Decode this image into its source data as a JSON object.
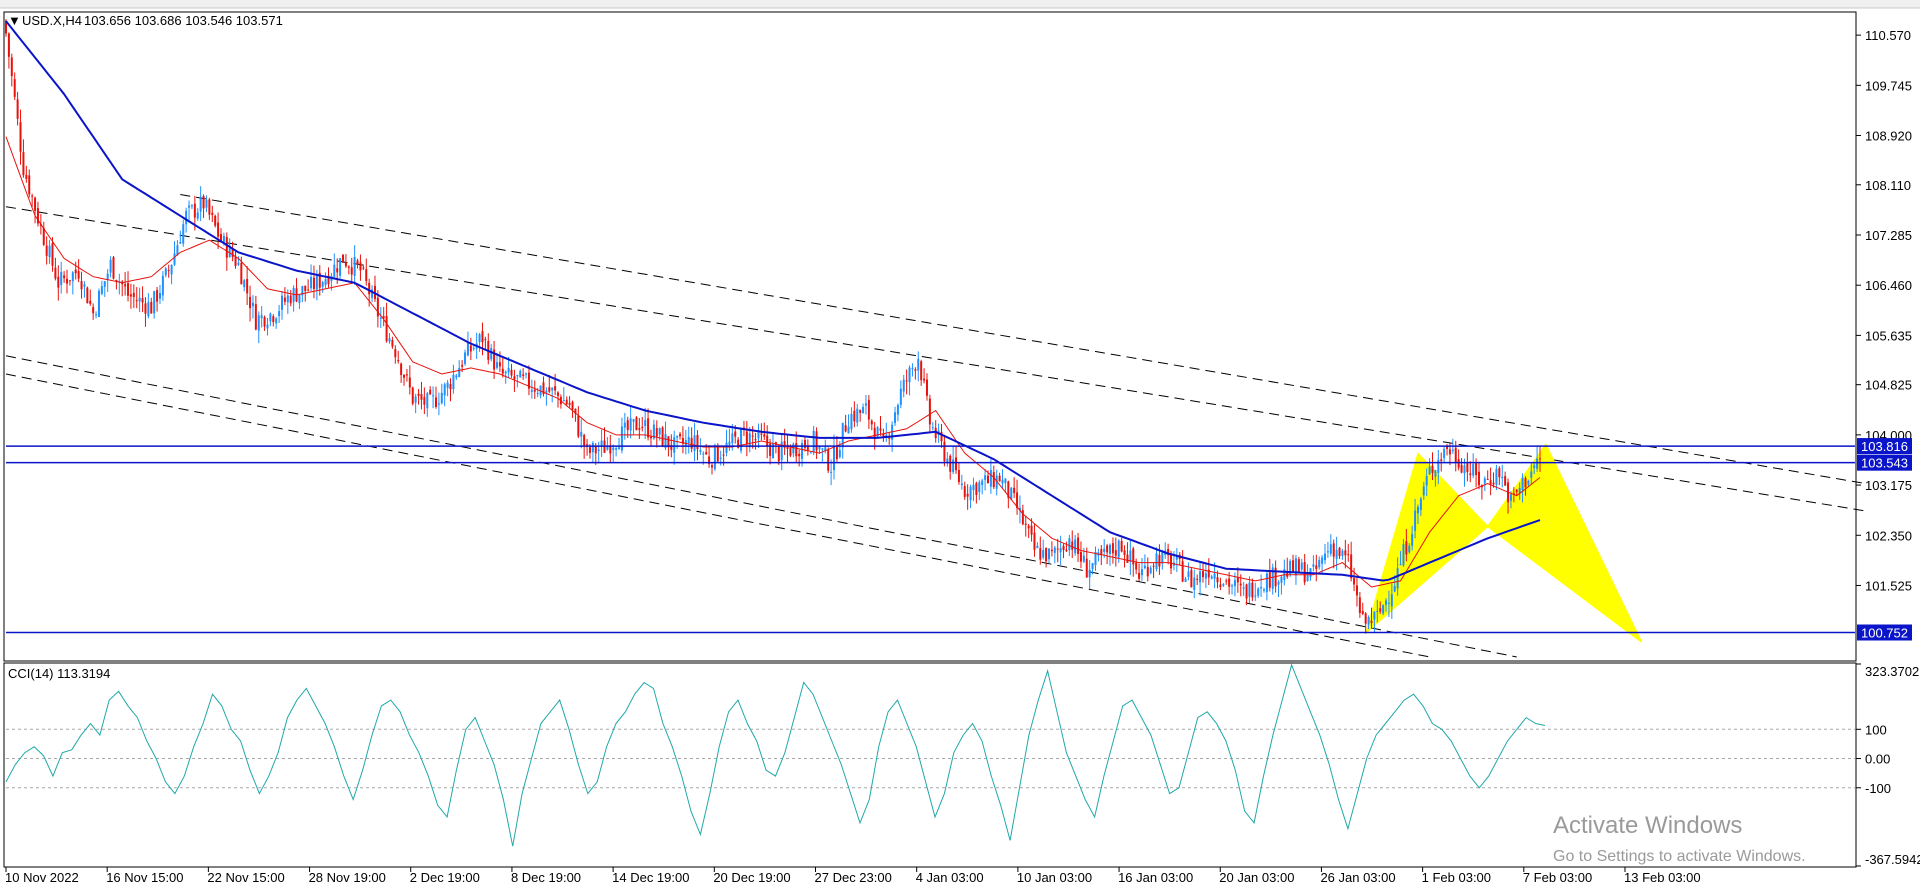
{
  "header": {
    "menu_glyph": "▼",
    "symbol_label": "USD.X,H4",
    "ohlc_text": "103.656 103.686 103.546 103.571"
  },
  "indicator": {
    "label": "CCI(14) 113.3194"
  },
  "watermark": {
    "title": "Activate Windows",
    "subtitle": "Go to Settings to activate Windows."
  },
  "colors": {
    "bull_candle": "#1e90ff",
    "bear_candle": "#e8120c",
    "ma_fast": "#e8120c",
    "ma_slow": "#0a14c8",
    "level_lines": "#0a14c8",
    "channel": "#000000",
    "pattern": "#ffff00",
    "cci": "#20a8a8",
    "grid_dots": "#a8a8a8"
  },
  "chart_data": [
    {
      "type": "candlestick",
      "symbol": "USD.X",
      "timeframe": "H4",
      "ylim": [
        100.3,
        110.95
      ],
      "price_ticks": [
        "110.570",
        "109.745",
        "108.920",
        "108.110",
        "107.285",
        "106.460",
        "105.635",
        "104.825",
        "104.000",
        "103.175",
        "102.350",
        "101.525"
      ],
      "x_ticks": [
        "10 Nov 2022",
        "16 Nov 15:00",
        "22 Nov 15:00",
        "28 Nov 19:00",
        "2 Dec 19:00",
        "8 Dec 19:00",
        "14 Dec 19:00",
        "20 Dec 19:00",
        "27 Dec 23:00",
        "4 Jan 03:00",
        "10 Jan 03:00",
        "16 Jan 03:00",
        "20 Jan 03:00",
        "26 Jan 03:00",
        "1 Feb 03:00",
        "7 Feb 03:00",
        "13 Feb 03:00"
      ],
      "level_lines": [
        {
          "label": "103.816",
          "value": 103.816
        },
        {
          "label": "103.543",
          "value": 103.543
        },
        {
          "label": "100.752",
          "value": 100.752
        }
      ],
      "last_ohlc": {
        "open": 103.656,
        "high": 103.686,
        "low": 103.546,
        "close": 103.571
      },
      "close_path": [
        [
          0,
          110.6
        ],
        [
          6,
          108.4
        ],
        [
          12,
          107.4
        ],
        [
          18,
          106.5
        ],
        [
          25,
          106.7
        ],
        [
          30,
          106.0
        ],
        [
          36,
          106.8
        ],
        [
          42,
          106.3
        ],
        [
          50,
          106.1
        ],
        [
          56,
          106.7
        ],
        [
          62,
          107.6
        ],
        [
          68,
          107.8
        ],
        [
          74,
          107.2
        ],
        [
          80,
          106.8
        ],
        [
          86,
          105.9
        ],
        [
          92,
          106.0
        ],
        [
          98,
          106.3
        ],
        [
          104,
          106.4
        ],
        [
          110,
          106.6
        ],
        [
          116,
          106.9
        ],
        [
          122,
          106.7
        ],
        [
          128,
          106.0
        ],
        [
          134,
          105.4
        ],
        [
          140,
          104.6
        ],
        [
          146,
          104.5
        ],
        [
          152,
          104.8
        ],
        [
          158,
          105.3
        ],
        [
          164,
          105.6
        ],
        [
          170,
          105.0
        ],
        [
          176,
          104.9
        ],
        [
          182,
          104.8
        ],
        [
          188,
          104.7
        ],
        [
          194,
          104.5
        ],
        [
          200,
          103.7
        ],
        [
          206,
          103.8
        ],
        [
          212,
          104.0
        ],
        [
          218,
          104.2
        ],
        [
          224,
          104.0
        ],
        [
          230,
          103.8
        ],
        [
          236,
          103.9
        ],
        [
          242,
          103.6
        ],
        [
          248,
          103.8
        ],
        [
          254,
          104.0
        ],
        [
          260,
          103.9
        ],
        [
          266,
          103.7
        ],
        [
          272,
          103.8
        ],
        [
          278,
          103.9
        ],
        [
          284,
          103.5
        ],
        [
          290,
          104.3
        ],
        [
          296,
          104.4
        ],
        [
          302,
          103.8
        ],
        [
          308,
          104.7
        ],
        [
          314,
          105.3
        ],
        [
          318,
          104.2
        ],
        [
          324,
          103.6
        ],
        [
          330,
          103.1
        ],
        [
          336,
          103.2
        ],
        [
          342,
          103.3
        ],
        [
          348,
          102.8
        ],
        [
          354,
          102.1
        ],
        [
          360,
          102.0
        ],
        [
          366,
          102.3
        ],
        [
          372,
          101.8
        ],
        [
          378,
          102.0
        ],
        [
          384,
          102.2
        ],
        [
          390,
          101.7
        ],
        [
          396,
          102.0
        ],
        [
          402,
          101.9
        ],
        [
          408,
          101.6
        ],
        [
          414,
          101.8
        ],
        [
          420,
          101.6
        ],
        [
          426,
          101.4
        ],
        [
          432,
          101.6
        ],
        [
          438,
          101.7
        ],
        [
          444,
          101.8
        ],
        [
          450,
          101.7
        ],
        [
          456,
          102.2
        ],
        [
          462,
          101.9
        ],
        [
          467,
          100.9
        ],
        [
          472,
          101.0
        ],
        [
          478,
          101.6
        ],
        [
          484,
          102.5
        ],
        [
          490,
          103.4
        ],
        [
          496,
          103.8
        ],
        [
          502,
          103.5
        ],
        [
          508,
          103.2
        ],
        [
          514,
          103.4
        ],
        [
          518,
          102.9
        ],
        [
          522,
          103.2
        ],
        [
          528,
          103.6
        ]
      ],
      "ma_fast_path": [
        [
          0,
          108.9
        ],
        [
          10,
          107.6
        ],
        [
          20,
          106.9
        ],
        [
          30,
          106.6
        ],
        [
          40,
          106.5
        ],
        [
          50,
          106.6
        ],
        [
          60,
          107.0
        ],
        [
          70,
          107.2
        ],
        [
          80,
          106.9
        ],
        [
          90,
          106.4
        ],
        [
          100,
          106.3
        ],
        [
          110,
          106.4
        ],
        [
          120,
          106.5
        ],
        [
          130,
          105.9
        ],
        [
          140,
          105.2
        ],
        [
          150,
          105.0
        ],
        [
          160,
          105.1
        ],
        [
          170,
          105.0
        ],
        [
          180,
          104.8
        ],
        [
          190,
          104.6
        ],
        [
          200,
          104.2
        ],
        [
          210,
          104.0
        ],
        [
          220,
          104.0
        ],
        [
          230,
          103.9
        ],
        [
          240,
          103.8
        ],
        [
          250,
          103.8
        ],
        [
          260,
          103.9
        ],
        [
          270,
          103.8
        ],
        [
          280,
          103.7
        ],
        [
          290,
          103.9
        ],
        [
          300,
          104.0
        ],
        [
          310,
          104.1
        ],
        [
          320,
          104.4
        ],
        [
          330,
          103.7
        ],
        [
          340,
          103.3
        ],
        [
          350,
          102.7
        ],
        [
          360,
          102.3
        ],
        [
          370,
          102.1
        ],
        [
          380,
          102.0
        ],
        [
          390,
          101.9
        ],
        [
          400,
          101.9
        ],
        [
          410,
          101.8
        ],
        [
          420,
          101.7
        ],
        [
          430,
          101.6
        ],
        [
          440,
          101.7
        ],
        [
          450,
          101.7
        ],
        [
          460,
          101.9
        ],
        [
          470,
          101.5
        ],
        [
          480,
          101.6
        ],
        [
          490,
          102.4
        ],
        [
          500,
          103.0
        ],
        [
          510,
          103.2
        ],
        [
          520,
          103.0
        ],
        [
          528,
          103.3
        ]
      ],
      "ma_slow_path": [
        [
          0,
          110.8
        ],
        [
          20,
          109.6
        ],
        [
          40,
          108.2
        ],
        [
          60,
          107.6
        ],
        [
          80,
          107.0
        ],
        [
          100,
          106.7
        ],
        [
          120,
          106.5
        ],
        [
          140,
          106.0
        ],
        [
          160,
          105.5
        ],
        [
          180,
          105.1
        ],
        [
          200,
          104.7
        ],
        [
          220,
          104.4
        ],
        [
          240,
          104.2
        ],
        [
          260,
          104.05
        ],
        [
          280,
          103.95
        ],
        [
          300,
          103.95
        ],
        [
          320,
          104.05
        ],
        [
          340,
          103.6
        ],
        [
          360,
          103.0
        ],
        [
          380,
          102.4
        ],
        [
          400,
          102.05
        ],
        [
          420,
          101.8
        ],
        [
          440,
          101.75
        ],
        [
          460,
          101.7
        ],
        [
          475,
          101.6
        ],
        [
          490,
          101.9
        ],
        [
          510,
          102.3
        ],
        [
          528,
          102.6
        ]
      ],
      "channel_lines": [
        {
          "style": "dashed",
          "from": [
            0,
            107.75
          ],
          "to": [
            640,
            102.75
          ]
        },
        {
          "style": "dashed",
          "from": [
            60,
            107.95
          ],
          "to": [
            640,
            103.2
          ]
        },
        {
          "style": "dashed",
          "from": [
            0,
            105.0
          ],
          "to": [
            490,
            100.35
          ]
        },
        {
          "style": "dashed",
          "from": [
            0,
            105.3
          ],
          "to": [
            520,
            100.35
          ]
        }
      ],
      "harmonic_pattern": {
        "color": "yellow",
        "points": [
          [
            468,
            100.75
          ],
          [
            486,
            103.7
          ],
          [
            510,
            102.5
          ],
          [
            530,
            103.85
          ],
          [
            563,
            100.6
          ]
        ]
      }
    },
    {
      "type": "line",
      "name": "CCI(14)",
      "current_value": 113.3194,
      "ylim": [
        -367.5942,
        323.3702
      ],
      "ticks": [
        "323.3702",
        "100",
        "0.00",
        "-100",
        "-367.5942"
      ],
      "levels": [
        100,
        -100
      ],
      "values": [
        -80,
        -20,
        20,
        40,
        10,
        -60,
        20,
        30,
        80,
        120,
        80,
        200,
        230,
        180,
        140,
        60,
        0,
        -80,
        -120,
        -60,
        40,
        120,
        220,
        180,
        100,
        60,
        -40,
        -120,
        -60,
        20,
        140,
        200,
        240,
        180,
        120,
        40,
        -60,
        -140,
        -40,
        80,
        180,
        200,
        160,
        80,
        20,
        -60,
        -160,
        -200,
        -40,
        100,
        140,
        60,
        -20,
        -140,
        -300,
        -120,
        0,
        120,
        160,
        200,
        100,
        -20,
        -120,
        -80,
        40,
        120,
        160,
        220,
        260,
        240,
        120,
        40,
        -60,
        -180,
        -260,
        -120,
        40,
        160,
        200,
        120,
        60,
        -40,
        -60,
        20,
        140,
        260,
        220,
        140,
        60,
        -20,
        -120,
        -220,
        -140,
        40,
        160,
        200,
        120,
        40,
        -80,
        -200,
        -120,
        20,
        80,
        120,
        60,
        -60,
        -160,
        -280,
        -100,
        80,
        200,
        300,
        160,
        20,
        -60,
        -140,
        -200,
        -60,
        60,
        180,
        200,
        140,
        80,
        -20,
        -120,
        -100,
        20,
        140,
        160,
        120,
        60,
        -40,
        -180,
        -220,
        -60,
        80,
        200,
        320,
        240,
        160,
        80,
        -20,
        -140,
        -240,
        -120,
        0,
        80,
        120,
        160,
        200,
        220,
        180,
        120,
        100,
        60,
        0,
        -60,
        -100,
        -60,
        0,
        60,
        100,
        140,
        120,
        113
      ]
    }
  ]
}
